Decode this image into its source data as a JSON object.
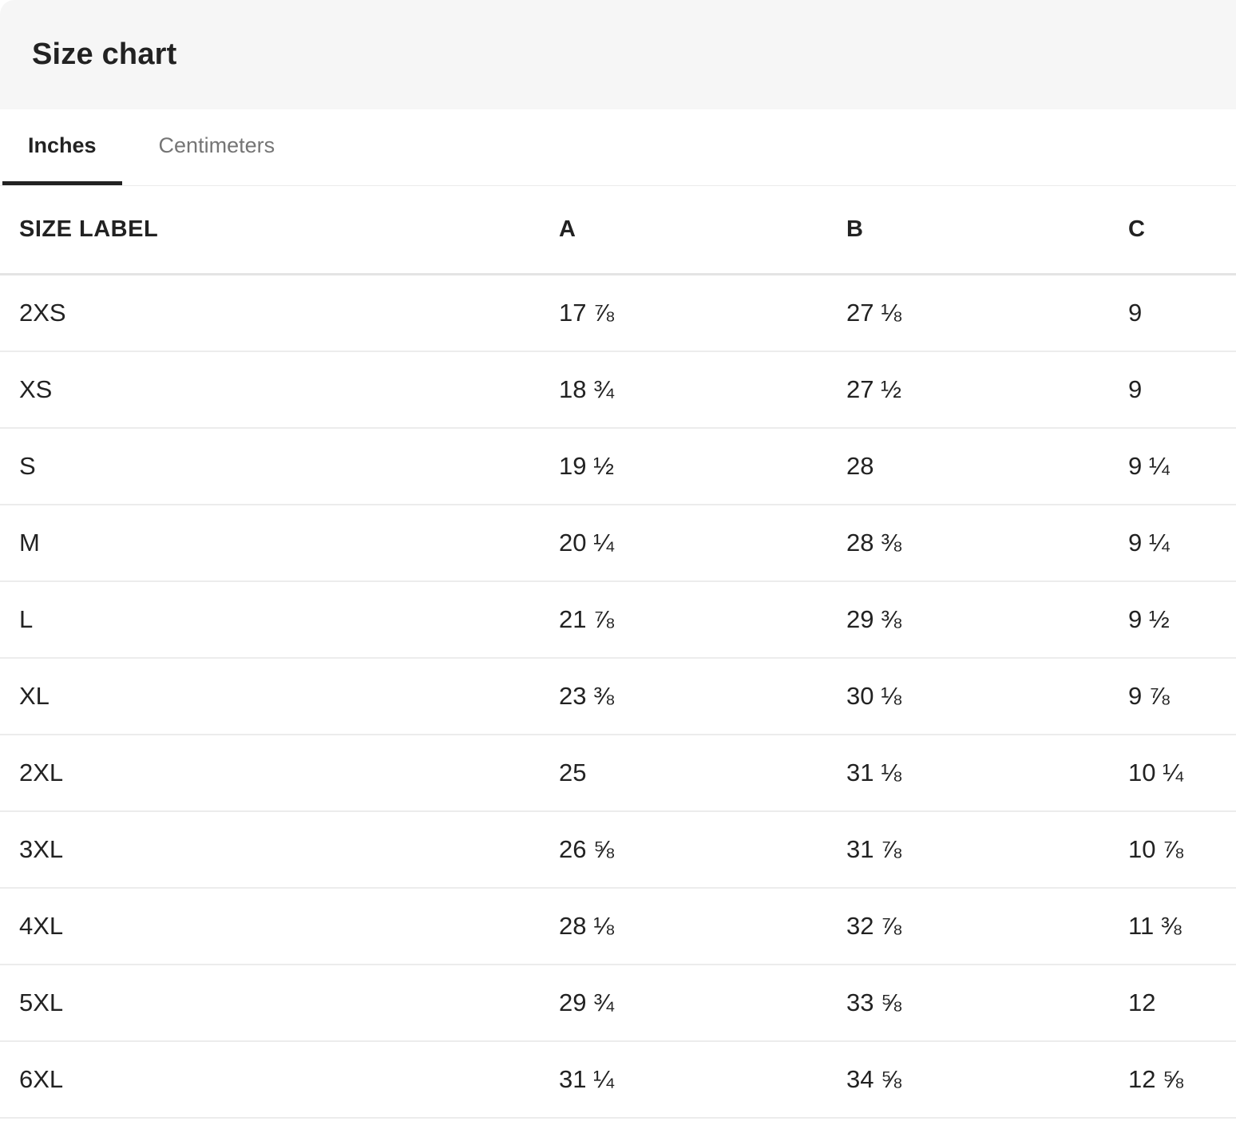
{
  "panel": {
    "title": "Size chart"
  },
  "tabs": [
    {
      "label": "Inches",
      "active": true
    },
    {
      "label": "Centimeters",
      "active": false
    }
  ],
  "table": {
    "columns": [
      "SIZE LABEL",
      "A",
      "B",
      "C"
    ],
    "rows": [
      {
        "size": "2XS",
        "a": "17 ⅞",
        "b": "27 ⅛",
        "c": "9"
      },
      {
        "size": "XS",
        "a": "18 ¾",
        "b": "27 ½",
        "c": "9"
      },
      {
        "size": "S",
        "a": "19 ½",
        "b": "28",
        "c": "9 ¼"
      },
      {
        "size": "M",
        "a": "20 ¼",
        "b": "28 ⅜",
        "c": "9 ¼"
      },
      {
        "size": "L",
        "a": "21 ⅞",
        "b": "29 ⅜",
        "c": "9 ½"
      },
      {
        "size": "XL",
        "a": "23 ⅜",
        "b": "30 ⅛",
        "c": "9 ⅞"
      },
      {
        "size": "2XL",
        "a": "25",
        "b": "31 ⅛",
        "c": "10 ¼"
      },
      {
        "size": "3XL",
        "a": "26 ⅝",
        "b": "31 ⅞",
        "c": "10 ⅞"
      },
      {
        "size": "4XL",
        "a": "28 ⅛",
        "b": "32 ⅞",
        "c": "11 ⅜"
      },
      {
        "size": "5XL",
        "a": "29 ¾",
        "b": "33 ⅝",
        "c": "12"
      },
      {
        "size": "6XL",
        "a": "31 ¼",
        "b": "34 ⅝",
        "c": "12 ⅝"
      }
    ]
  },
  "colors": {
    "header-bg": "#f6f6f6",
    "text-dark": "#222222",
    "text-muted": "#757575",
    "divider": "#ececec",
    "divider-strong": "#e4e4e4",
    "underline": "#222222",
    "page-bg": "#ffffff"
  }
}
